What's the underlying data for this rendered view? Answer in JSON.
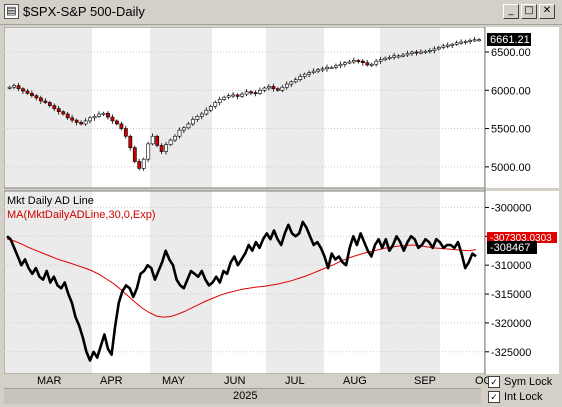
{
  "window": {
    "title": "$SPX-S&P 500-Daily",
    "app_icon": "chart-app-icon",
    "controls": {
      "minimize": "_",
      "maximize": "□",
      "close": "✕"
    }
  },
  "price_panel": {
    "last_value": "6661.21",
    "y_ticks": [
      "6500.00",
      "6000.00",
      "5500.00",
      "5000.00"
    ]
  },
  "indicator_panel": {
    "title": "Mkt Daily AD Line",
    "ma_label": "MA(MktDailyADLine,30,0,Exp)",
    "last_value": "-308467",
    "ma_value": "-307303.0303",
    "y_ticks": [
      "-300000",
      "-305000",
      "-310000",
      "-315000",
      "-320000",
      "-325000"
    ]
  },
  "x_axis": {
    "months": [
      "MAR",
      "APR",
      "MAY",
      "JUN",
      "JUL",
      "AUG",
      "SEP",
      "OC"
    ],
    "year": "2025"
  },
  "locks": {
    "sym_lock": "Sym Lock",
    "int_lock": "Int Lock"
  },
  "colors": {
    "up_candle": "#ffffff",
    "down_candle": "#cc0000",
    "ad_line": "#000000",
    "ma_line": "#e00000",
    "band_light": "#ebebeb",
    "band_white": "#ffffff"
  },
  "chart_data": [
    {
      "type": "candlestick",
      "title": "$SPX-S&P 500-Daily",
      "ylim": [
        4750,
        6800
      ],
      "months": [
        "MAR",
        "APR",
        "MAY",
        "JUN",
        "JUL",
        "AUG",
        "SEP",
        "OC"
      ],
      "year": "2025",
      "series": [
        {
          "name": "$SPX",
          "close": [
            6040,
            6060,
            6020,
            5990,
            5960,
            5930,
            5900,
            5860,
            5840,
            5800,
            5760,
            5720,
            5690,
            5640,
            5610,
            5580,
            5560,
            5600,
            5640,
            5660,
            5690,
            5700,
            5650,
            5600,
            5560,
            5500,
            5400,
            5250,
            5070,
            4980,
            5100,
            5300,
            5400,
            5280,
            5200,
            5290,
            5350,
            5400,
            5480,
            5510,
            5560,
            5620,
            5660,
            5690,
            5740,
            5790,
            5840,
            5880,
            5910,
            5930,
            5940,
            5920,
            5950,
            5980,
            5970,
            5960,
            6000,
            6030,
            6050,
            6020,
            6000,
            6040,
            6080,
            6110,
            6140,
            6180,
            6210,
            6230,
            6250,
            6270,
            6280,
            6300,
            6300,
            6320,
            6340,
            6360,
            6370,
            6390,
            6380,
            6360,
            6330,
            6340,
            6380,
            6400,
            6420,
            6430,
            6450,
            6450,
            6460,
            6480,
            6500,
            6490,
            6500,
            6510,
            6520,
            6540,
            6560,
            6580,
            6590,
            6600,
            6620,
            6630,
            6640,
            6650,
            6660,
            6661.21
          ]
        }
      ]
    },
    {
      "type": "line",
      "title": "Mkt Daily AD Line",
      "ylim": [
        -328500,
        -297500
      ],
      "series": [
        {
          "name": "Mkt Daily AD Line",
          "values": [
            -305000,
            -305500,
            -307000,
            -308500,
            -310000,
            -309000,
            -310500,
            -311500,
            -310500,
            -312000,
            -312500,
            -311000,
            -313000,
            -312000,
            -313500,
            -314000,
            -313000,
            -315000,
            -316500,
            -319000,
            -320500,
            -322500,
            -325000,
            -326500,
            -325000,
            -326000,
            -324000,
            -322000,
            -324500,
            -325500,
            -320500,
            -316500,
            -314500,
            -313500,
            -314000,
            -315500,
            -314000,
            -311500,
            -311000,
            -310000,
            -310500,
            -312500,
            -311000,
            -309500,
            -307500,
            -309000,
            -310000,
            -312500,
            -313500,
            -314000,
            -312500,
            -311000,
            -311500,
            -312000,
            -311000,
            -312500,
            -313500,
            -313000,
            -312000,
            -313000,
            -311000,
            -311500,
            -309500,
            -308500,
            -310000,
            -309000,
            -308000,
            -306500,
            -307500,
            -306000,
            -307000,
            -305500,
            -304500,
            -305500,
            -304000,
            -305500,
            -306500,
            -304500,
            -303000,
            -304500,
            -305000,
            -304500,
            -302500,
            -303500,
            -305000,
            -306500,
            -306000,
            -307000,
            -308500,
            -310500,
            -308000,
            -309000,
            -308500,
            -309500,
            -310000,
            -307000,
            -305000,
            -306500,
            -304500,
            -306000,
            -307500,
            -308500,
            -306500,
            -305500,
            -307000,
            -305500,
            -307500,
            -306500,
            -305000,
            -306000,
            -307500,
            -306000,
            -305000,
            -305500,
            -307000,
            -306500,
            -305500,
            -306000,
            -307000,
            -305500,
            -306000,
            -307000,
            -306500,
            -306500,
            -307000,
            -306000,
            -308000,
            -310500,
            -309500,
            -308000,
            -308467
          ]
        },
        {
          "name": "MA(MktDailyADLine,30,0,Exp)",
          "values": [
            -305500,
            -305800,
            -306300,
            -306900,
            -307400,
            -307900,
            -308400,
            -308900,
            -309300,
            -309700,
            -310100,
            -310500,
            -311000,
            -311600,
            -312400,
            -313200,
            -314200,
            -315300,
            -316400,
            -317400,
            -318200,
            -318800,
            -319000,
            -318900,
            -318500,
            -318000,
            -317400,
            -316800,
            -316200,
            -315700,
            -315200,
            -314800,
            -314500,
            -314200,
            -314000,
            -313800,
            -313700,
            -313500,
            -313300,
            -313000,
            -312700,
            -312300,
            -311900,
            -311400,
            -310900,
            -310400,
            -309900,
            -309300,
            -308800,
            -308400,
            -308000,
            -307700,
            -307400,
            -307100,
            -306900,
            -306700,
            -306600,
            -306500,
            -306600,
            -306800,
            -307000,
            -307100,
            -307200,
            -307300,
            -307400,
            -307500,
            -307303
          ]
        }
      ]
    }
  ]
}
